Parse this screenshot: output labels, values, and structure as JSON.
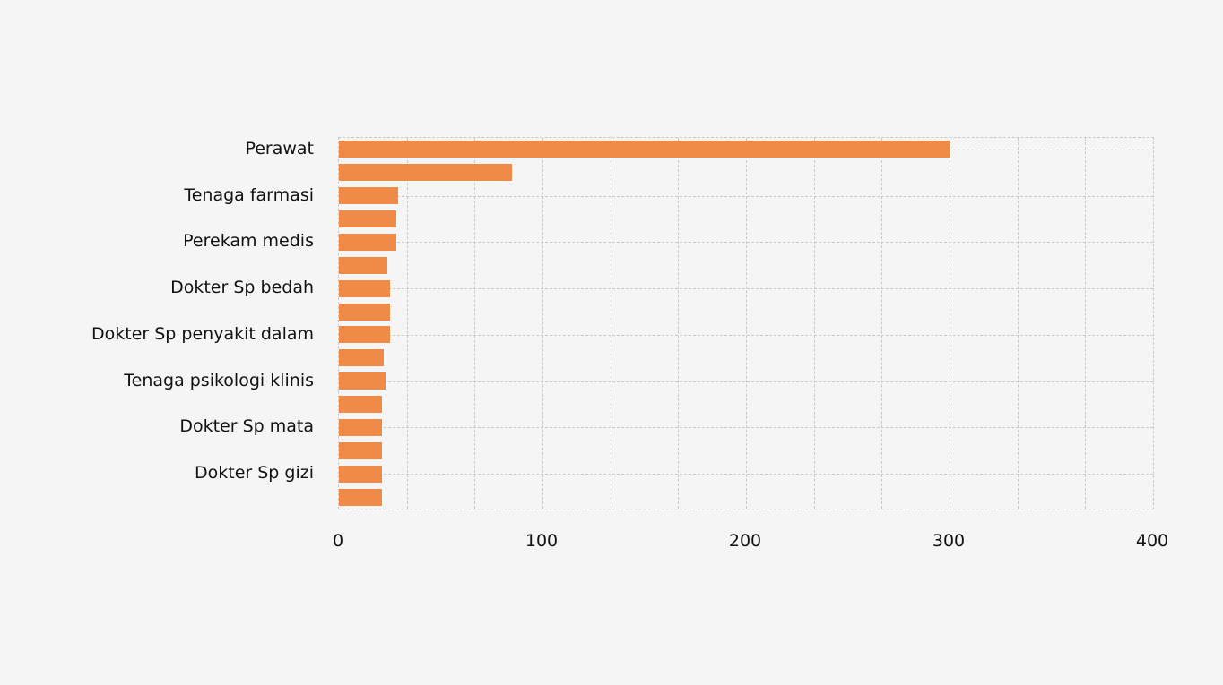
{
  "chart_data": {
    "type": "bar",
    "orientation": "horizontal",
    "title": "",
    "xlabel": "",
    "ylabel": "",
    "xlim": [
      0,
      400
    ],
    "x_ticks": [
      0,
      100,
      200,
      300,
      400
    ],
    "x_minor_divisions_per_major": 3,
    "grid": "dashed",
    "legend": "none",
    "bar_color": "#ef8a47",
    "background_color": "#f5f5f5",
    "grid_color": "#c9c9c9",
    "text_color": "#111111",
    "note": "16 bars; only alternate category ticks are labeled",
    "bars": [
      {
        "label": "Perawat",
        "value": 300
      },
      {
        "label": "",
        "value": 85
      },
      {
        "label": "Tenaga farmasi",
        "value": 29
      },
      {
        "label": "",
        "value": 28
      },
      {
        "label": "Perekam medis",
        "value": 28
      },
      {
        "label": "",
        "value": 24
      },
      {
        "label": "Dokter Sp bedah",
        "value": 25
      },
      {
        "label": "",
        "value": 25
      },
      {
        "label": "Dokter Sp penyakit dalam",
        "value": 25
      },
      {
        "label": "",
        "value": 22
      },
      {
        "label": "Tenaga psikologi klinis",
        "value": 23
      },
      {
        "label": "",
        "value": 21
      },
      {
        "label": "Dokter Sp mata",
        "value": 21
      },
      {
        "label": "",
        "value": 21
      },
      {
        "label": "Dokter Sp gizi",
        "value": 21
      },
      {
        "label": "",
        "value": 21
      }
    ]
  }
}
